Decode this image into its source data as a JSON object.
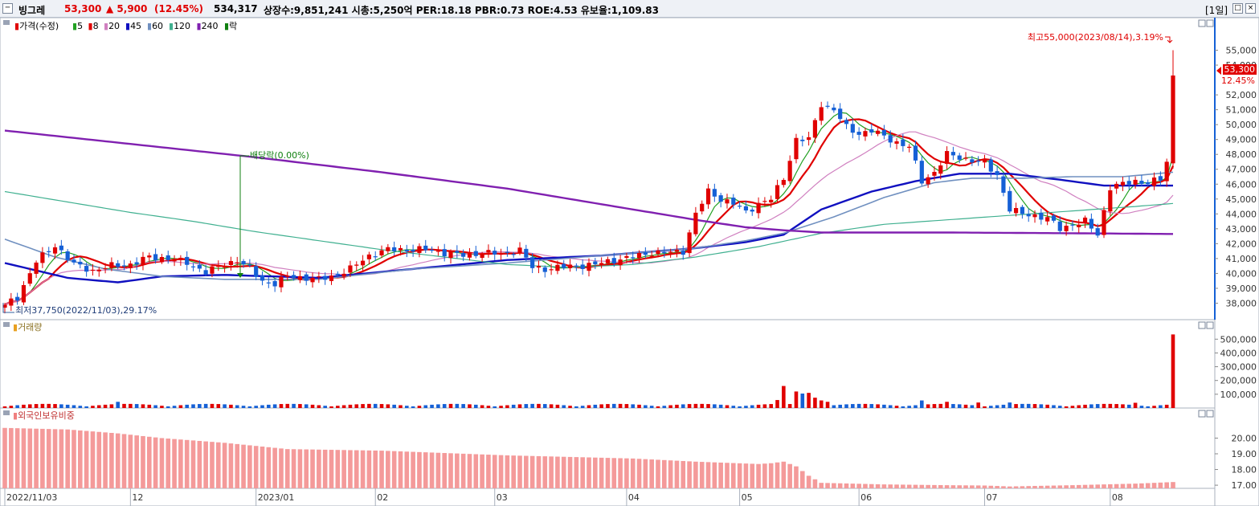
{
  "header": {
    "name": "빙그레",
    "price": "53,300",
    "change": "▲ 5,900",
    "change_pct": "(12.45%)",
    "volume": "534,317",
    "info": "상장수:9,851,241  시총:5,250억  PER:18.18  PBR:0.73  ROE:4.53  유보율:1,109.83",
    "period": "[1일]",
    "up_color": "#e00000",
    "down_color": "#1560d6"
  },
  "legend": {
    "price": "가격(수정)",
    "ma_labels": [
      "5",
      "8",
      "20",
      "45",
      "60",
      "120",
      "240",
      "락"
    ],
    "ma_colors": [
      "#22a022",
      "#e00000",
      "#d080c0",
      "#1010c0",
      "#7090c0",
      "#40b090",
      "#8020b0",
      "#108010"
    ]
  },
  "annotations": {
    "high": "최고55,000(2023/08/14),3.19%",
    "low": "최저37,750(2022/11/03),29.17%",
    "dividend": "배당락(0.00%)",
    "current_price": "53,300",
    "current_pct": "12.45%"
  },
  "volume_panel": {
    "title": "거래량"
  },
  "foreign_panel": {
    "title": "외국인보유비중"
  },
  "x_axis": {
    "labels": [
      "2022/11/03",
      "12",
      "2023/01",
      "02",
      "03",
      "04",
      "05",
      "06",
      "07",
      "08"
    ],
    "label_days": [
      0,
      20,
      40,
      59,
      78,
      99,
      117,
      136,
      156,
      176
    ]
  },
  "chart_data": [
    {
      "type": "candlestick",
      "title": "빙그레",
      "ylim": [
        37000,
        56000
      ],
      "yticks": [
        38000,
        39000,
        40000,
        41000,
        42000,
        43000,
        44000,
        45000,
        46000,
        47000,
        48000,
        49000,
        50000,
        51000,
        52000,
        54000,
        55000
      ],
      "anchors": [
        [
          0,
          37900
        ],
        [
          2,
          38400
        ],
        [
          5,
          40800
        ],
        [
          8,
          41900
        ],
        [
          11,
          40600
        ],
        [
          14,
          40200
        ],
        [
          17,
          40500
        ],
        [
          20,
          40600
        ],
        [
          23,
          41100
        ],
        [
          26,
          41000
        ],
        [
          29,
          40700
        ],
        [
          32,
          40100
        ],
        [
          35,
          40600
        ],
        [
          37,
          40900
        ],
        [
          39,
          40300
        ],
        [
          41,
          39500
        ],
        [
          43,
          39300
        ],
        [
          45,
          39800
        ],
        [
          48,
          39700
        ],
        [
          50,
          39600
        ],
        [
          52,
          39800
        ],
        [
          55,
          40300
        ],
        [
          58,
          41200
        ],
        [
          61,
          41600
        ],
        [
          64,
          41600
        ],
        [
          67,
          41600
        ],
        [
          70,
          41400
        ],
        [
          73,
          41200
        ],
        [
          76,
          41400
        ],
        [
          79,
          41300
        ],
        [
          82,
          41600
        ],
        [
          84,
          40400
        ],
        [
          86,
          40300
        ],
        [
          88,
          40400
        ],
        [
          91,
          40500
        ],
        [
          94,
          40600
        ],
        [
          97,
          40900
        ],
        [
          100,
          41100
        ],
        [
          103,
          41400
        ],
        [
          106,
          41400
        ],
        [
          108,
          41500
        ],
        [
          110,
          44000
        ],
        [
          112,
          45500
        ],
        [
          114,
          45000
        ],
        [
          116,
          44700
        ],
        [
          118,
          44100
        ],
        [
          120,
          44700
        ],
        [
          122,
          45000
        ],
        [
          124,
          46400
        ],
        [
          126,
          49000
        ],
        [
          128,
          49000
        ],
        [
          130,
          51400
        ],
        [
          132,
          51000
        ],
        [
          134,
          49800
        ],
        [
          136,
          49400
        ],
        [
          138,
          49600
        ],
        [
          140,
          49200
        ],
        [
          142,
          48800
        ],
        [
          144,
          48500
        ],
        [
          146,
          46200
        ],
        [
          148,
          46800
        ],
        [
          150,
          48000
        ],
        [
          152,
          47800
        ],
        [
          154,
          47600
        ],
        [
          156,
          47400
        ],
        [
          158,
          46600
        ],
        [
          160,
          44300
        ],
        [
          162,
          44000
        ],
        [
          164,
          43900
        ],
        [
          166,
          43700
        ],
        [
          168,
          43000
        ],
        [
          170,
          43300
        ],
        [
          172,
          43500
        ],
        [
          174,
          42600
        ],
        [
          176,
          45800
        ],
        [
          178,
          46000
        ],
        [
          180,
          46200
        ],
        [
          182,
          46100
        ],
        [
          184,
          46300
        ],
        [
          185,
          47500
        ],
        [
          186,
          53300
        ]
      ],
      "ma_lines": [
        {
          "name": "5",
          "color": "#22a022",
          "width": 1.2,
          "window": 5
        },
        {
          "name": "8",
          "color": "#e00000",
          "width": 2.2,
          "window": 8
        },
        {
          "name": "20",
          "color": "#d080c0",
          "width": 1.2,
          "window": 20
        },
        {
          "name": "45",
          "color": "#1010c0",
          "width": 2.4,
          "points": [
            [
              0,
              40700
            ],
            [
              10,
              39700
            ],
            [
              18,
              39400
            ],
            [
              25,
              39800
            ],
            [
              35,
              39900
            ],
            [
              50,
              39700
            ],
            [
              65,
              40300
            ],
            [
              80,
              40900
            ],
            [
              95,
              41200
            ],
            [
              110,
              41700
            ],
            [
              118,
              42100
            ],
            [
              124,
              42600
            ],
            [
              130,
              44300
            ],
            [
              138,
              45500
            ],
            [
              145,
              46200
            ],
            [
              152,
              46700
            ],
            [
              160,
              46700
            ],
            [
              168,
              46300
            ],
            [
              175,
              45900
            ],
            [
              186,
              45900
            ]
          ]
        },
        {
          "name": "60",
          "color": "#7090c0",
          "width": 1.6,
          "points": [
            [
              0,
              42300
            ],
            [
              8,
              41100
            ],
            [
              16,
              40300
            ],
            [
              25,
              39800
            ],
            [
              35,
              39600
            ],
            [
              50,
              39600
            ],
            [
              65,
              40300
            ],
            [
              80,
              40700
            ],
            [
              95,
              41200
            ],
            [
              110,
              41700
            ],
            [
              118,
              42200
            ],
            [
              124,
              42700
            ],
            [
              132,
              43800
            ],
            [
              140,
              45100
            ],
            [
              148,
              46100
            ],
            [
              154,
              46400
            ],
            [
              162,
              46400
            ],
            [
              170,
              46500
            ],
            [
              178,
              46500
            ],
            [
              186,
              46800
            ]
          ]
        },
        {
          "name": "120",
          "color": "#40b090",
          "width": 1.2,
          "points": [
            [
              0,
              45500
            ],
            [
              10,
              44800
            ],
            [
              20,
              44100
            ],
            [
              30,
              43500
            ],
            [
              40,
              42800
            ],
            [
              50,
              42200
            ],
            [
              60,
              41600
            ],
            [
              70,
              41100
            ],
            [
              80,
              40600
            ],
            [
              90,
              40400
            ],
            [
              100,
              40600
            ],
            [
              110,
              41100
            ],
            [
              120,
              41800
            ],
            [
              130,
              42700
            ],
            [
              140,
              43300
            ],
            [
              150,
              43600
            ],
            [
              160,
              43900
            ],
            [
              170,
              44200
            ],
            [
              180,
              44500
            ],
            [
              186,
              44700
            ]
          ]
        },
        {
          "name": "240",
          "color": "#8020b0",
          "width": 2.4,
          "points": [
            [
              0,
              49600
            ],
            [
              20,
              48700
            ],
            [
              40,
              47800
            ],
            [
              60,
              46800
            ],
            [
              80,
              45700
            ],
            [
              100,
              44300
            ],
            [
              110,
              43600
            ],
            [
              118,
              43100
            ],
            [
              124,
              42900
            ],
            [
              130,
              42750
            ],
            [
              150,
              42750
            ],
            [
              170,
              42700
            ],
            [
              186,
              42650
            ]
          ]
        }
      ]
    },
    {
      "type": "bar",
      "title": "거래량",
      "ylim": [
        0,
        560000
      ],
      "yticks": [
        100000,
        200000,
        300000,
        400000,
        500000
      ],
      "day_range": [
        0,
        186
      ],
      "baseline": 12000,
      "spikes": [
        [
          18,
          45000
        ],
        [
          123,
          58000
        ],
        [
          124,
          160000
        ],
        [
          126,
          120000
        ],
        [
          127,
          105000
        ],
        [
          128,
          110000
        ],
        [
          129,
          75000
        ],
        [
          130,
          55000
        ],
        [
          131,
          45000
        ],
        [
          146,
          55000
        ],
        [
          150,
          45000
        ],
        [
          155,
          40000
        ],
        [
          160,
          40000
        ],
        [
          180,
          38000
        ],
        [
          186,
          534317
        ]
      ]
    },
    {
      "type": "bar",
      "title": "외국인보유비중",
      "ylim": [
        16.8,
        21.2
      ],
      "yticks": [
        17.0,
        18.0,
        19.0,
        20.0
      ],
      "anchors": [
        [
          0,
          20.65
        ],
        [
          10,
          20.55
        ],
        [
          18,
          20.3
        ],
        [
          25,
          20.0
        ],
        [
          35,
          19.7
        ],
        [
          45,
          19.3
        ],
        [
          60,
          19.2
        ],
        [
          80,
          18.9
        ],
        [
          100,
          18.7
        ],
        [
          110,
          18.5
        ],
        [
          120,
          18.35
        ],
        [
          122,
          18.4
        ],
        [
          124,
          18.5
        ],
        [
          126,
          18.2
        ],
        [
          128,
          17.6
        ],
        [
          130,
          17.15
        ],
        [
          140,
          17.05
        ],
        [
          150,
          17.0
        ],
        [
          156,
          16.98
        ],
        [
          160,
          16.92
        ],
        [
          170,
          17.0
        ],
        [
          180,
          17.1
        ],
        [
          186,
          17.2
        ]
      ]
    }
  ]
}
